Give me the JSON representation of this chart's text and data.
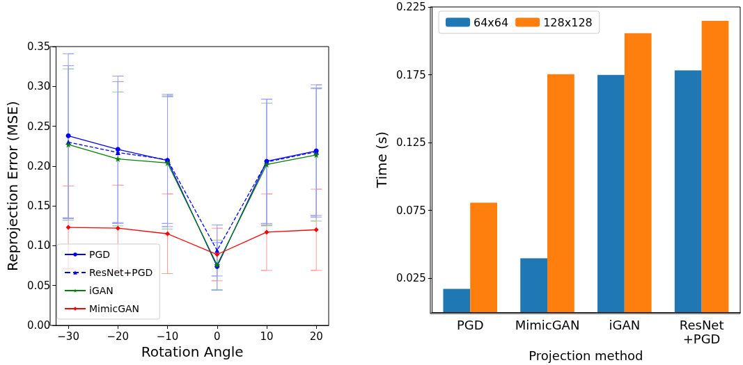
{
  "chart_data": [
    {
      "type": "line",
      "xlabel": "Rotation Angle",
      "ylabel": "Reprojection Error (MSE)",
      "x": [
        -30,
        -20,
        -10,
        0,
        10,
        20
      ],
      "xlim": [
        -32.5,
        22.5
      ],
      "xticks": [
        {
          "value": -30,
          "label": "−30"
        },
        {
          "value": -20,
          "label": "−20"
        },
        {
          "value": -10,
          "label": "−10"
        },
        0,
        10,
        20
      ],
      "ylim": [
        0,
        0.35
      ],
      "yticks": [
        {
          "value": 0,
          "label": "0.00"
        },
        0.05,
        {
          "value": 0.1,
          "label": "0.10"
        },
        0.15,
        {
          "value": 0.2,
          "label": "0.20"
        },
        0.25,
        {
          "value": 0.3,
          "label": "0.30"
        },
        0.35
      ],
      "grid": false,
      "legend": "bottom left",
      "series": [
        {
          "name": "PGD",
          "color": "#0000ff",
          "marker": "circle",
          "line_style": "solid",
          "values": [
            0.238,
            0.221,
            0.207,
            0.074,
            0.206,
            0.219
          ],
          "errors": [
            0.103,
            0.092,
            0.083,
            0.03,
            0.078,
            0.083
          ]
        },
        {
          "name": "ResNet+PGD",
          "color": "#0000ff",
          "marker": "triangle",
          "line_style": "dashed",
          "values": [
            0.23,
            0.217,
            0.208,
            0.094,
            0.205,
            0.218
          ],
          "errors": [
            0.096,
            0.089,
            0.08,
            0.032,
            0.079,
            0.08
          ]
        },
        {
          "name": "iGAN",
          "color": "#008000",
          "marker": "star",
          "line_style": "solid",
          "values": [
            0.227,
            0.209,
            0.204,
            0.076,
            0.202,
            0.214
          ],
          "errors": [
            0.095,
            0.084,
            0.083,
            0.031,
            0.077,
            0.083
          ]
        },
        {
          "name": "MimicGAN",
          "color": "#ff0000",
          "marker": "diamond",
          "line_style": "solid",
          "values": [
            0.123,
            0.122,
            0.115,
            0.089,
            0.117,
            0.12
          ],
          "errors": [
            0.052,
            0.054,
            0.05,
            0.033,
            0.048,
            0.051
          ]
        }
      ]
    },
    {
      "type": "bar",
      "xlabel": "Projection method",
      "ylabel": "Time (s)",
      "categories": [
        "PGD",
        "MimicGAN",
        "iGAN",
        "ResNet\n+PGD"
      ],
      "ylim": [
        0,
        0.225
      ],
      "yticks": [
        0.025,
        0.075,
        0.125,
        0.175,
        0.225
      ],
      "grid": false,
      "legend": "top left",
      "series": [
        {
          "name": "64x64",
          "color": "#1f77b4",
          "values": [
            0.0172,
            0.0398,
            0.1749,
            0.1783
          ]
        },
        {
          "name": "128x128",
          "color": "#ff7f0e",
          "values": [
            0.0807,
            0.1754,
            0.2056,
            0.2148
          ]
        }
      ]
    }
  ]
}
